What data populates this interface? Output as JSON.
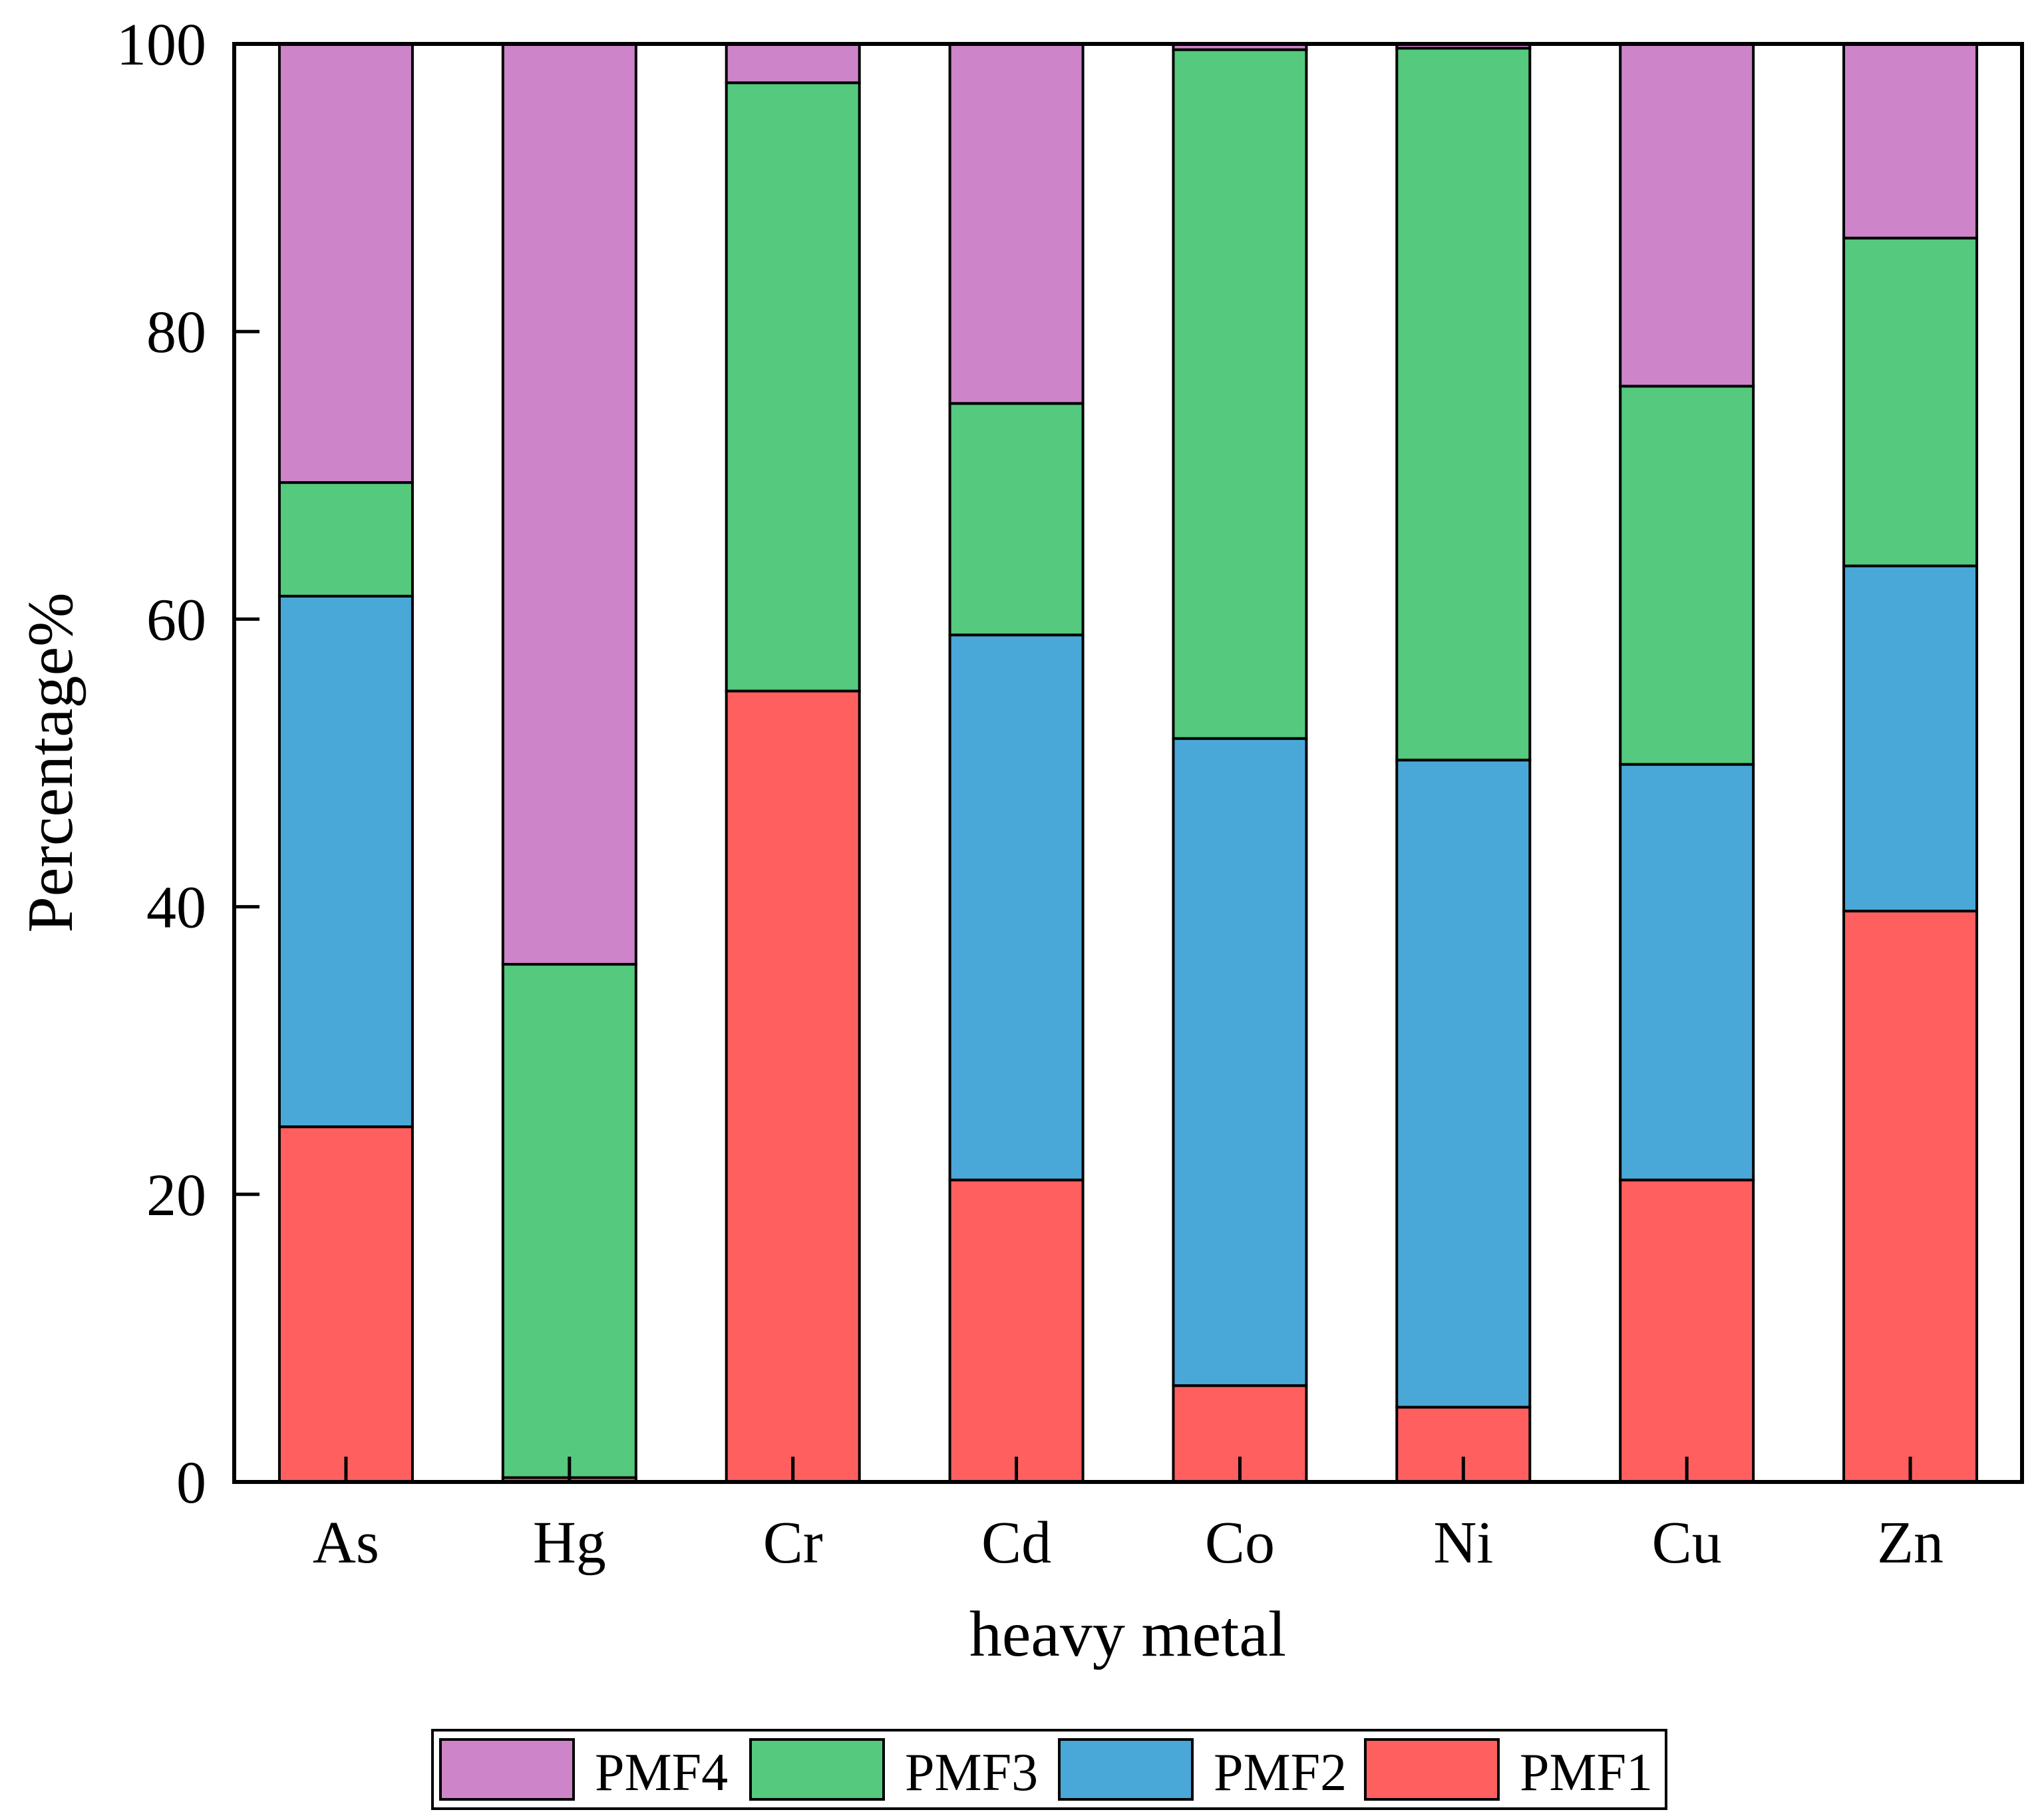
{
  "chart_data": {
    "type": "bar",
    "stacked": true,
    "categories": [
      "As",
      "Hg",
      "Cr",
      "Cd",
      "Co",
      "Ni",
      "Cu",
      "Zn"
    ],
    "series": [
      {
        "name": "PMF1",
        "color": "#FF5F5F",
        "values": [
          24.7,
          0.3,
          55.0,
          21.0,
          6.7,
          5.2,
          21.0,
          39.7
        ]
      },
      {
        "name": "PMF2",
        "color": "#4AA8D8",
        "values": [
          36.9,
          0.0,
          0.0,
          37.9,
          45.0,
          45.0,
          28.9,
          24.0
        ]
      },
      {
        "name": "PMF3",
        "color": "#55C97E",
        "values": [
          7.9,
          35.7,
          42.3,
          16.1,
          47.9,
          49.5,
          26.3,
          22.8
        ]
      },
      {
        "name": "PMF4",
        "color": "#CD84C9",
        "values": [
          30.5,
          64.0,
          2.7,
          25.0,
          0.4,
          0.3,
          23.8,
          13.5
        ]
      }
    ],
    "legend_order": [
      "PMF4",
      "PMF3",
      "PMF2",
      "PMF1"
    ],
    "legend_position": "bottom",
    "xlabel": "heavy metal",
    "ylabel": "Percentage%",
    "ylim": [
      0,
      100
    ],
    "yticks": [
      "0",
      "20",
      "40",
      "60",
      "80",
      "100"
    ],
    "grid": false
  }
}
